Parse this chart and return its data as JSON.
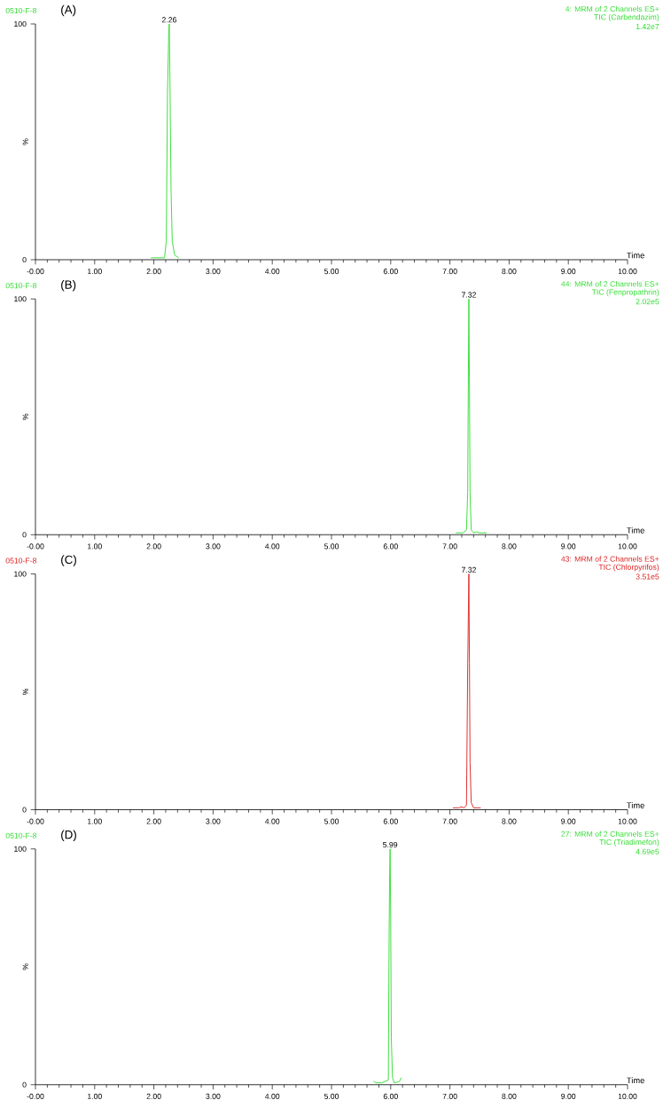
{
  "chart_data": [
    {
      "type": "line",
      "title": "0510-F-8",
      "subtitle": "(A)",
      "xlabel": "Time",
      "ylabel": "%",
      "annotations": [
        "4: MRM of 2 Channels ES+",
        "TIC (Carbendazim)",
        "1.42e7",
        {
          "text": "2.26",
          "x": 2.26,
          "y": 100
        }
      ],
      "x": [
        1.95,
        2.18,
        2.21,
        2.23,
        2.25,
        2.26,
        2.27,
        2.29,
        2.31,
        2.35,
        2.42
      ],
      "series": [
        {
          "color": "#33dd33",
          "values": [
            0.8,
            0.8,
            8,
            70,
            95,
            100,
            80,
            30,
            8,
            2,
            0.8
          ]
        }
      ],
      "xlim": [
        0,
        10
      ],
      "ylim": [
        0,
        100
      ],
      "xticks": [
        {
          "value": 0,
          "label": "-0.00"
        },
        {
          "value": 1,
          "label": "1.00"
        },
        {
          "value": 2,
          "label": "2.00"
        },
        {
          "value": 3,
          "label": "3.00"
        },
        {
          "value": 4,
          "label": "4.00"
        },
        {
          "value": 5,
          "label": "5.00"
        },
        {
          "value": 6,
          "label": "6.00"
        },
        {
          "value": 7,
          "label": "7.00"
        },
        {
          "value": 8,
          "label": "8.00"
        },
        {
          "value": 9,
          "label": "9.00"
        },
        {
          "value": 10,
          "label": "10.00"
        }
      ],
      "yticks": [
        0,
        100
      ]
    },
    {
      "type": "line",
      "title": "0510-F-8",
      "subtitle": "(B)",
      "xlabel": "Time",
      "ylabel": "%",
      "annotations": [
        "44: MRM of 2 Channels ES+",
        "TIC (Fenpropathrin)",
        "2.02e5",
        {
          "text": "7.32",
          "x": 7.32,
          "y": 100
        }
      ],
      "x": [
        7.1,
        7.22,
        7.28,
        7.3,
        7.31,
        7.32,
        7.33,
        7.34,
        7.36,
        7.4,
        7.45,
        7.5,
        7.62
      ],
      "series": [
        {
          "color": "#33dd33",
          "values": [
            0.8,
            0.8,
            2,
            18,
            60,
            100,
            62,
            18,
            2,
            0.8,
            1.2,
            0.8,
            0.8
          ]
        }
      ],
      "xlim": [
        0,
        10
      ],
      "ylim": [
        0,
        100
      ],
      "xticks": [
        {
          "value": 0,
          "label": "-0.00"
        },
        {
          "value": 1,
          "label": "1.00"
        },
        {
          "value": 2,
          "label": "2.00"
        },
        {
          "value": 3,
          "label": "3.00"
        },
        {
          "value": 4,
          "label": "4.00"
        },
        {
          "value": 5,
          "label": "5.00"
        },
        {
          "value": 6,
          "label": "6.00"
        },
        {
          "value": 7,
          "label": "7.00"
        },
        {
          "value": 8,
          "label": "8.00"
        },
        {
          "value": 9,
          "label": "9.00"
        },
        {
          "value": 10,
          "label": "10.00"
        }
      ],
      "yticks": [
        0,
        100
      ]
    },
    {
      "type": "line",
      "title": "0510-F-8",
      "subtitle": "(C)",
      "xlabel": "Time",
      "ylabel": "%",
      "annotations": [
        "43: MRM of 2 Channels ES+",
        "TIC (Chlorpyrifos)",
        "3.51e5",
        {
          "text": "7.32",
          "x": 7.32,
          "y": 100
        }
      ],
      "x": [
        7.05,
        7.15,
        7.2,
        7.24,
        7.28,
        7.3,
        7.32,
        7.33,
        7.34,
        7.36,
        7.4,
        7.52
      ],
      "series": [
        {
          "color": "#dd2222",
          "values": [
            0.8,
            0.8,
            1.2,
            0.8,
            2,
            60,
            100,
            62,
            20,
            3,
            0.8,
            0.8
          ]
        }
      ],
      "xlim": [
        0,
        10
      ],
      "ylim": [
        0,
        100
      ],
      "xticks": [
        {
          "value": 0,
          "label": "-0.00"
        },
        {
          "value": 1,
          "label": "1.00"
        },
        {
          "value": 2,
          "label": "2.00"
        },
        {
          "value": 3,
          "label": "3.00"
        },
        {
          "value": 4,
          "label": "4.00"
        },
        {
          "value": 5,
          "label": "5.00"
        },
        {
          "value": 6,
          "label": "6.00"
        },
        {
          "value": 7,
          "label": "7.00"
        },
        {
          "value": 8,
          "label": "8.00"
        },
        {
          "value": 9,
          "label": "9.00"
        },
        {
          "value": 10,
          "label": "10.00"
        }
      ],
      "yticks": [
        0,
        100
      ]
    },
    {
      "type": "line",
      "title": "0510-F-8",
      "subtitle": "(D)",
      "xlabel": "Time",
      "ylabel": "%",
      "annotations": [
        "27: MRM of 2 Channels ES+",
        "TIC (Triadimefon)",
        "4.69e5",
        {
          "text": "5.99",
          "x": 5.99,
          "y": 100
        }
      ],
      "x": [
        5.71,
        5.75,
        5.85,
        5.96,
        5.97,
        5.98,
        5.99,
        6.0,
        6.01,
        6.03,
        6.06,
        6.12,
        6.15,
        6.18
      ],
      "series": [
        {
          "color": "#33dd33",
          "values": [
            1.5,
            0.8,
            0.8,
            2,
            50,
            85,
            100,
            70,
            20,
            3,
            0.8,
            1.2,
            1.5,
            3
          ]
        }
      ],
      "xlim": [
        0,
        10
      ],
      "ylim": [
        0,
        100
      ],
      "xticks": [
        {
          "value": 0,
          "label": "-0.00"
        },
        {
          "value": 1,
          "label": "1.00"
        },
        {
          "value": 2,
          "label": "2.00"
        },
        {
          "value": 3,
          "label": "3.00"
        },
        {
          "value": 4,
          "label": "4.00"
        },
        {
          "value": 5,
          "label": "5.00"
        },
        {
          "value": 6,
          "label": "6.00"
        },
        {
          "value": 7,
          "label": "7.00"
        },
        {
          "value": 8,
          "label": "8.00"
        },
        {
          "value": 9,
          "label": "9.00"
        },
        {
          "value": 10,
          "label": "10.00"
        }
      ],
      "yticks": [
        0,
        100
      ]
    }
  ]
}
